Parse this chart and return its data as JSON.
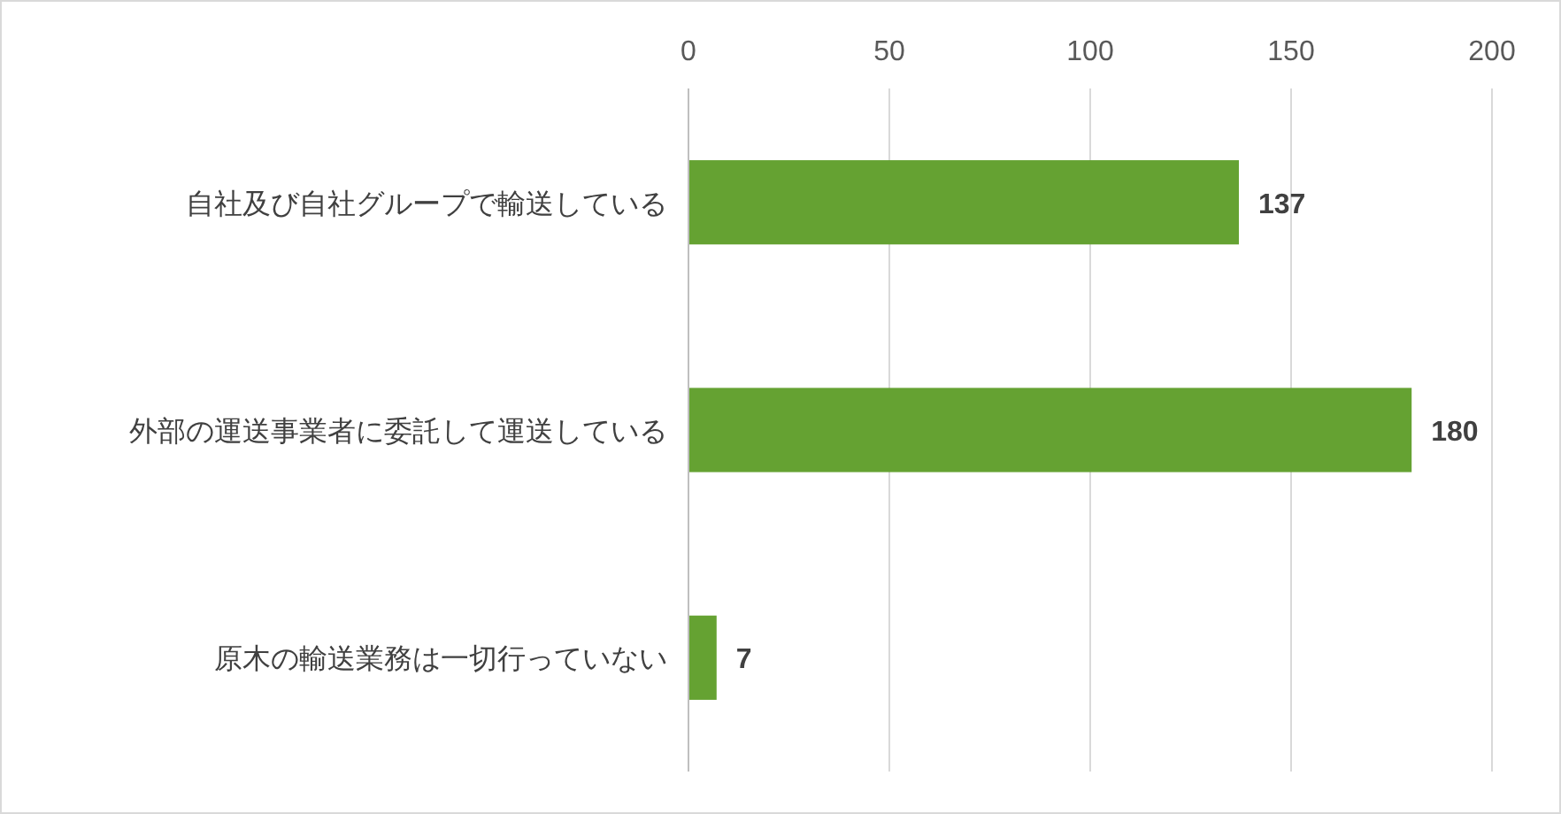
{
  "chart_data": {
    "type": "bar",
    "orientation": "horizontal",
    "categories": [
      "自社及び自社グループで輸送している",
      "外部の運送事業者に委託して運送している",
      "原木の輸送業務は一切行っていない"
    ],
    "values": [
      137,
      180,
      7
    ],
    "color": "#65a232",
    "xlim": [
      0,
      200
    ],
    "xticks": [
      0,
      50,
      100,
      150,
      200
    ],
    "grid": "x",
    "data_labels": true
  }
}
